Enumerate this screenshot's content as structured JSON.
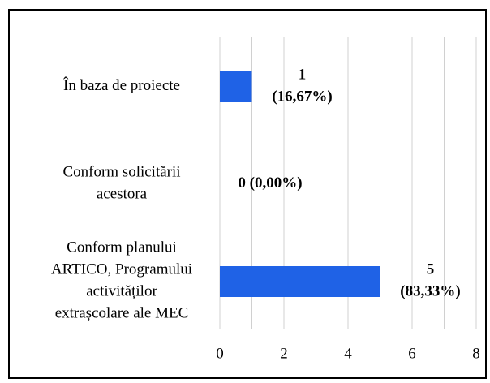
{
  "chart_data": {
    "type": "barh",
    "categories": [
      [
        "În baza de proiecte"
      ],
      [
        "Conform solicitării",
        "acestora"
      ],
      [
        "Conform planului",
        "ARTICO, Programului",
        "activităților",
        "extrașcolare ale MEC"
      ]
    ],
    "values": [
      1,
      0,
      5
    ],
    "value_labels": [
      [
        "1",
        "(16,67%)"
      ],
      [
        "0 (0,00%)"
      ],
      [
        "5",
        "(83,33%)"
      ]
    ],
    "color": "#1f62e6",
    "xlim": [
      0,
      8
    ],
    "xticks": [
      0,
      2,
      4,
      6,
      8
    ],
    "xminorticks": [
      1,
      3,
      5,
      7
    ],
    "grid": true
  }
}
